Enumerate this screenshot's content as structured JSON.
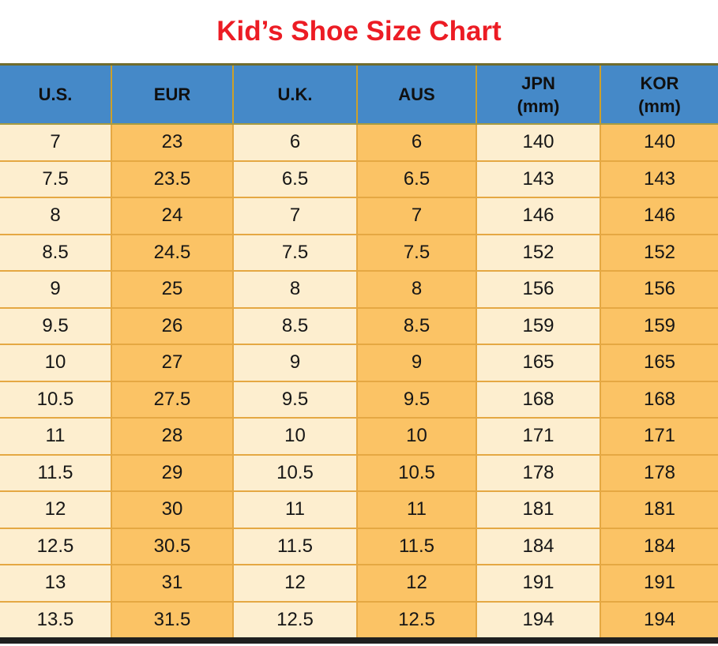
{
  "title": "Kid’s Shoe Size Chart",
  "chart_data": {
    "type": "table",
    "title": "Kid’s Shoe Size Chart",
    "columns": [
      {
        "label": "U.S.",
        "unit": ""
      },
      {
        "label": "EUR",
        "unit": ""
      },
      {
        "label": "U.K.",
        "unit": ""
      },
      {
        "label": "AUS",
        "unit": ""
      },
      {
        "label": "JPN",
        "unit": "(mm)"
      },
      {
        "label": "KOR",
        "unit": "(mm)"
      }
    ],
    "rows": [
      [
        7,
        23,
        6,
        6,
        140,
        140
      ],
      [
        7.5,
        23.5,
        6.5,
        6.5,
        143,
        143
      ],
      [
        8,
        24,
        7,
        7,
        146,
        146
      ],
      [
        8.5,
        24.5,
        7.5,
        7.5,
        152,
        152
      ],
      [
        9,
        25,
        8,
        8,
        156,
        156
      ],
      [
        9.5,
        26,
        8.5,
        8.5,
        159,
        159
      ],
      [
        10,
        27,
        9,
        9,
        165,
        165
      ],
      [
        10.5,
        27.5,
        9.5,
        9.5,
        168,
        168
      ],
      [
        11,
        28,
        10,
        10,
        171,
        171
      ],
      [
        11.5,
        29,
        10.5,
        10.5,
        178,
        178
      ],
      [
        12,
        30,
        11,
        11,
        181,
        181
      ],
      [
        12.5,
        30.5,
        11.5,
        11.5,
        184,
        184
      ],
      [
        13,
        31,
        12,
        12,
        191,
        191
      ],
      [
        13.5,
        31.5,
        12.5,
        12.5,
        194,
        194
      ]
    ]
  },
  "colors": {
    "title_red": "#EC1C24",
    "header_blue": "#4589C8",
    "column_light": "#FDEECF",
    "column_orange": "#FBC365",
    "grid_gold": "#E5A843",
    "header_divider_gold": "#CDA02A",
    "table_top_border": "#6F6C2D",
    "bottom_bar_dark": "#1F1F1F",
    "text": "#161616"
  }
}
